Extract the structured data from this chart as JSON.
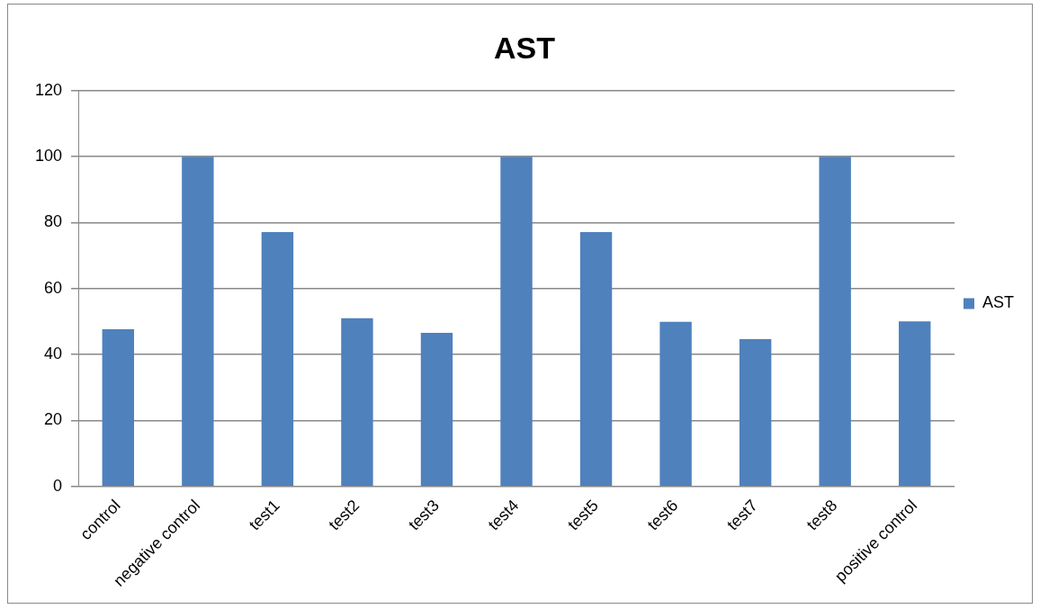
{
  "chart_data": {
    "type": "bar",
    "title": "AST",
    "categories": [
      "control",
      "negative control",
      "test1",
      "test2",
      "test3",
      "test4",
      "test5",
      "test6",
      "test7",
      "test8",
      "positive control"
    ],
    "series": [
      {
        "name": "AST",
        "color": "#4f81bd",
        "values": [
          47.7,
          100,
          77.1,
          51,
          46.6,
          100,
          77.1,
          49.9,
          44.7,
          100,
          50.1
        ]
      }
    ],
    "ylim": [
      0,
      120
    ],
    "yticks": [
      0,
      20,
      40,
      60,
      80,
      100,
      120
    ],
    "grid": "y",
    "legend": "right"
  }
}
